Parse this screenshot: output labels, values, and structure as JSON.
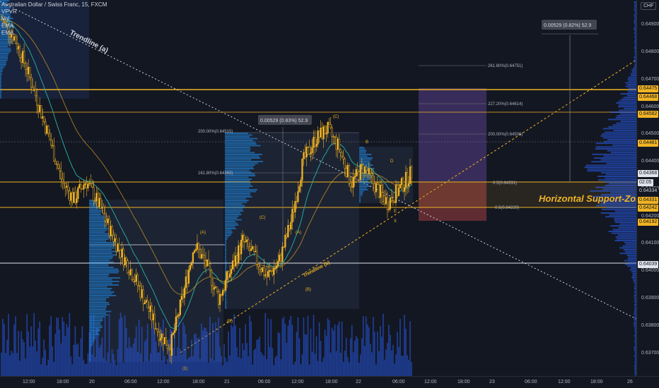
{
  "legend": {
    "symbol_line": "Australian Dollar / Swiss Franc, 15, FXCM",
    "items": [
      "VPVR",
      "Vol",
      "EMA",
      "EMA"
    ]
  },
  "price_axis": {
    "currency": "CHF",
    "ticks": [
      "0.64900",
      "0.64800",
      "0.64700",
      "0.64600",
      "0.64500",
      "0.64400",
      "0.64300",
      "0.64200",
      "0.64100",
      "0.64000",
      "0.63900",
      "0.63800",
      "0.63700"
    ]
  },
  "price_tags": [
    {
      "text": "0.64475",
      "bg": "#f0b323",
      "fg": "#131722"
    },
    {
      "text": "0.64468",
      "bg": "#f0b323",
      "fg": "#131722"
    },
    {
      "text": "0.64582",
      "bg": "#f0b323",
      "fg": "#131722"
    },
    {
      "text": "0.64481",
      "bg": "#f0b323",
      "fg": "#131722"
    },
    {
      "text": "0.64368",
      "bg": "#e0e3eb",
      "fg": "#131722"
    },
    {
      "text": "02:05",
      "bg": "#e0e3eb",
      "fg": "#131722"
    },
    {
      "text": "0.64334",
      "bg": "#131722",
      "fg": "#d1d4dc"
    },
    {
      "text": "0.64331",
      "bg": "#f0b323",
      "fg": "#131722"
    },
    {
      "text": "0.64242",
      "bg": "#f0b323",
      "fg": "#131722"
    },
    {
      "text": "0.64192",
      "bg": "#f0b323",
      "fg": "#131722"
    },
    {
      "text": "0.64039",
      "bg": "#e0e3eb",
      "fg": "#131722"
    }
  ],
  "time_axis": {
    "ticks": [
      "12:00",
      "18:00",
      "20",
      "06:00",
      "12:00",
      "18:00",
      "21",
      "06:00",
      "12:00",
      "18:00",
      "22",
      "06:00",
      "12:00",
      "18:00",
      "23",
      "06:00",
      "12:00",
      "18:00",
      "26"
    ]
  },
  "annotations": {
    "trendline_a": "Trendline (a)",
    "trendline_b": "Trendline (b)",
    "horizontal_zone": "Horizontal Support-Zone",
    "measure_1": "0.00529 (0.82%) 52.9",
    "measure_2": "0.00529 (0.83%) 52.9",
    "fib_right": [
      "261.80%(0.64751)",
      "227.20%(0.64614)",
      "200.00%(0.64506)",
      "0.5(0.64331)",
      "0.5(0.64239)"
    ],
    "fib_left": [
      "200.00%(0.64515)",
      "161.80%(0.64363)"
    ],
    "waves": [
      "(1)",
      "(A)",
      "(B)",
      "(C)",
      "(A)",
      "(B)",
      "(C)",
      "B",
      "D",
      "C",
      "E",
      "X"
    ]
  },
  "colors": {
    "background": "#131722",
    "candle": "#f0b323",
    "accent_line": "#f0b323",
    "volume": "#2962ff",
    "profile": "#1e88e5",
    "target_box": "#7e57c2",
    "stop_box": "#ef5350"
  },
  "chart_data": {
    "type": "candlestick",
    "y_range": [
      0.6365,
      0.6497
    ],
    "approx_close_path": [
      0.6492,
      0.6486,
      0.6475,
      0.6462,
      0.6448,
      0.6433,
      0.6426,
      0.6433,
      0.6425,
      0.6415,
      0.6406,
      0.6398,
      0.6388,
      0.6378,
      0.6372,
      0.639,
      0.641,
      0.6402,
      0.639,
      0.64,
      0.6411,
      0.6405,
      0.6398,
      0.6403,
      0.6418,
      0.644,
      0.6448,
      0.6452,
      0.6445,
      0.6432,
      0.6438,
      0.6431,
      0.6425,
      0.643,
      0.6436
    ]
  }
}
